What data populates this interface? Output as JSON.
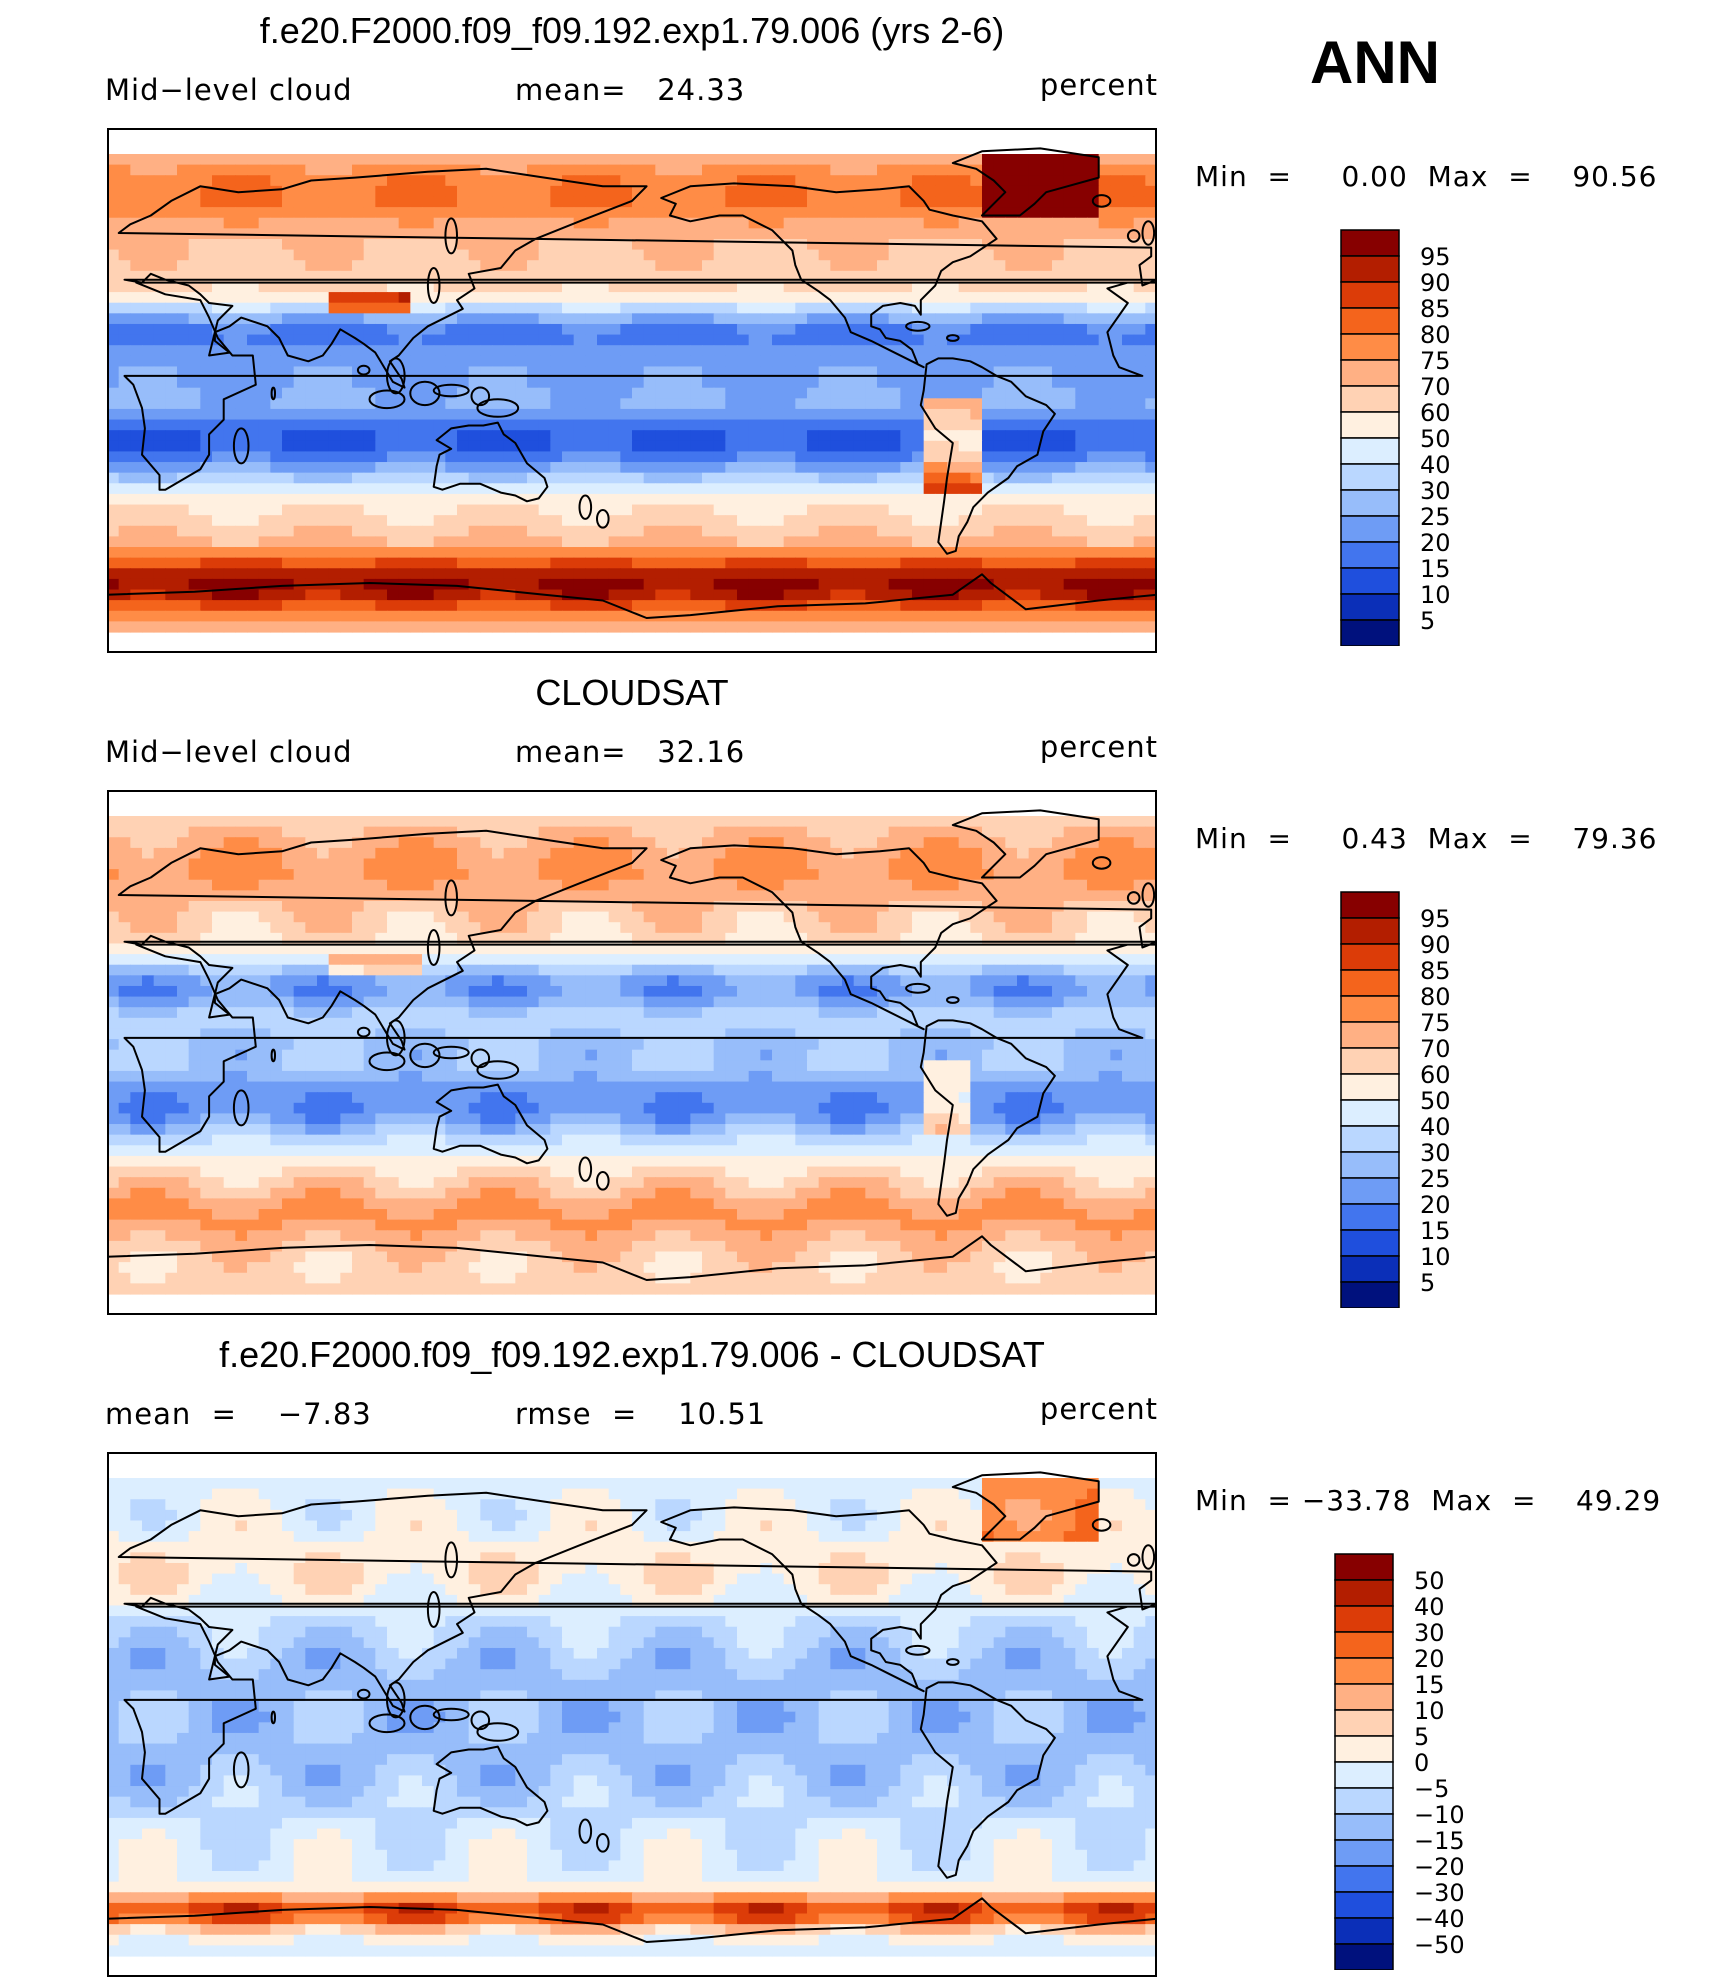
{
  "season": "ANN",
  "chart_data": [
    {
      "type": "heatmap",
      "title": "f.e20.F2000.f09_f09.192.exp1.79.006 (yrs 2-6)",
      "left_label": "Mid−level cloud",
      "center_label": "mean=   24.33",
      "units": "percent",
      "minmax": "Min  =     0.00  Max  =    90.56",
      "min": 0.0,
      "max": 90.56,
      "mean": 24.33,
      "colorbar_levels": [
        "95",
        "90",
        "85",
        "80",
        "75",
        "70",
        "60",
        "50",
        "40",
        "30",
        "25",
        "20",
        "15",
        "10",
        "5"
      ],
      "colorbar_colors": [
        "#870000",
        "#b31e00",
        "#dc3c08",
        "#f4641c",
        "#ff8c46",
        "#ffb084",
        "#ffd2b4",
        "#fff0e0",
        "#dceeff",
        "#bad7ff",
        "#97bdfa",
        "#6e9cf5",
        "#4275ee",
        "#1f4fdd",
        "#0b2fb8",
        "#00117d"
      ],
      "field": "model"
    },
    {
      "type": "heatmap",
      "title": "CLOUDSAT",
      "left_label": "Mid−level cloud",
      "center_label": "mean=   32.16",
      "units": "percent",
      "minmax": "Min  =     0.43  Max  =    79.36",
      "min": 0.43,
      "max": 79.36,
      "mean": 32.16,
      "colorbar_levels": [
        "95",
        "90",
        "85",
        "80",
        "75",
        "70",
        "60",
        "50",
        "40",
        "30",
        "25",
        "20",
        "15",
        "10",
        "5"
      ],
      "colorbar_colors": [
        "#870000",
        "#b31e00",
        "#dc3c08",
        "#f4641c",
        "#ff8c46",
        "#ffb084",
        "#ffd2b4",
        "#fff0e0",
        "#dceeff",
        "#bad7ff",
        "#97bdfa",
        "#6e9cf5",
        "#4275ee",
        "#1f4fdd",
        "#0b2fb8",
        "#00117d"
      ],
      "field": "obs"
    },
    {
      "type": "heatmap",
      "title": "f.e20.F2000.f09_f09.192.exp1.79.006 - CLOUDSAT",
      "left_label": "mean  =    −7.83",
      "center_label": "rmse  =    10.51",
      "units": "percent",
      "minmax": "Min  = −33.78  Max  =    49.29",
      "min": -33.78,
      "max": 49.29,
      "mean": -7.83,
      "rmse": 10.51,
      "colorbar_levels": [
        "50",
        "40",
        "30",
        "20",
        "15",
        "10",
        "5",
        "0",
        "−5",
        "−10",
        "−15",
        "−20",
        "−30",
        "−40",
        "−50"
      ],
      "colorbar_colors": [
        "#870000",
        "#b31e00",
        "#dc3c08",
        "#f4641c",
        "#ff8c46",
        "#ffb084",
        "#ffd2b4",
        "#fff0e0",
        "#dceeff",
        "#bad7ff",
        "#97bdfa",
        "#6e9cf5",
        "#4275ee",
        "#1f4fdd",
        "#0b2fb8",
        "#00117d"
      ],
      "field": "diff"
    }
  ]
}
